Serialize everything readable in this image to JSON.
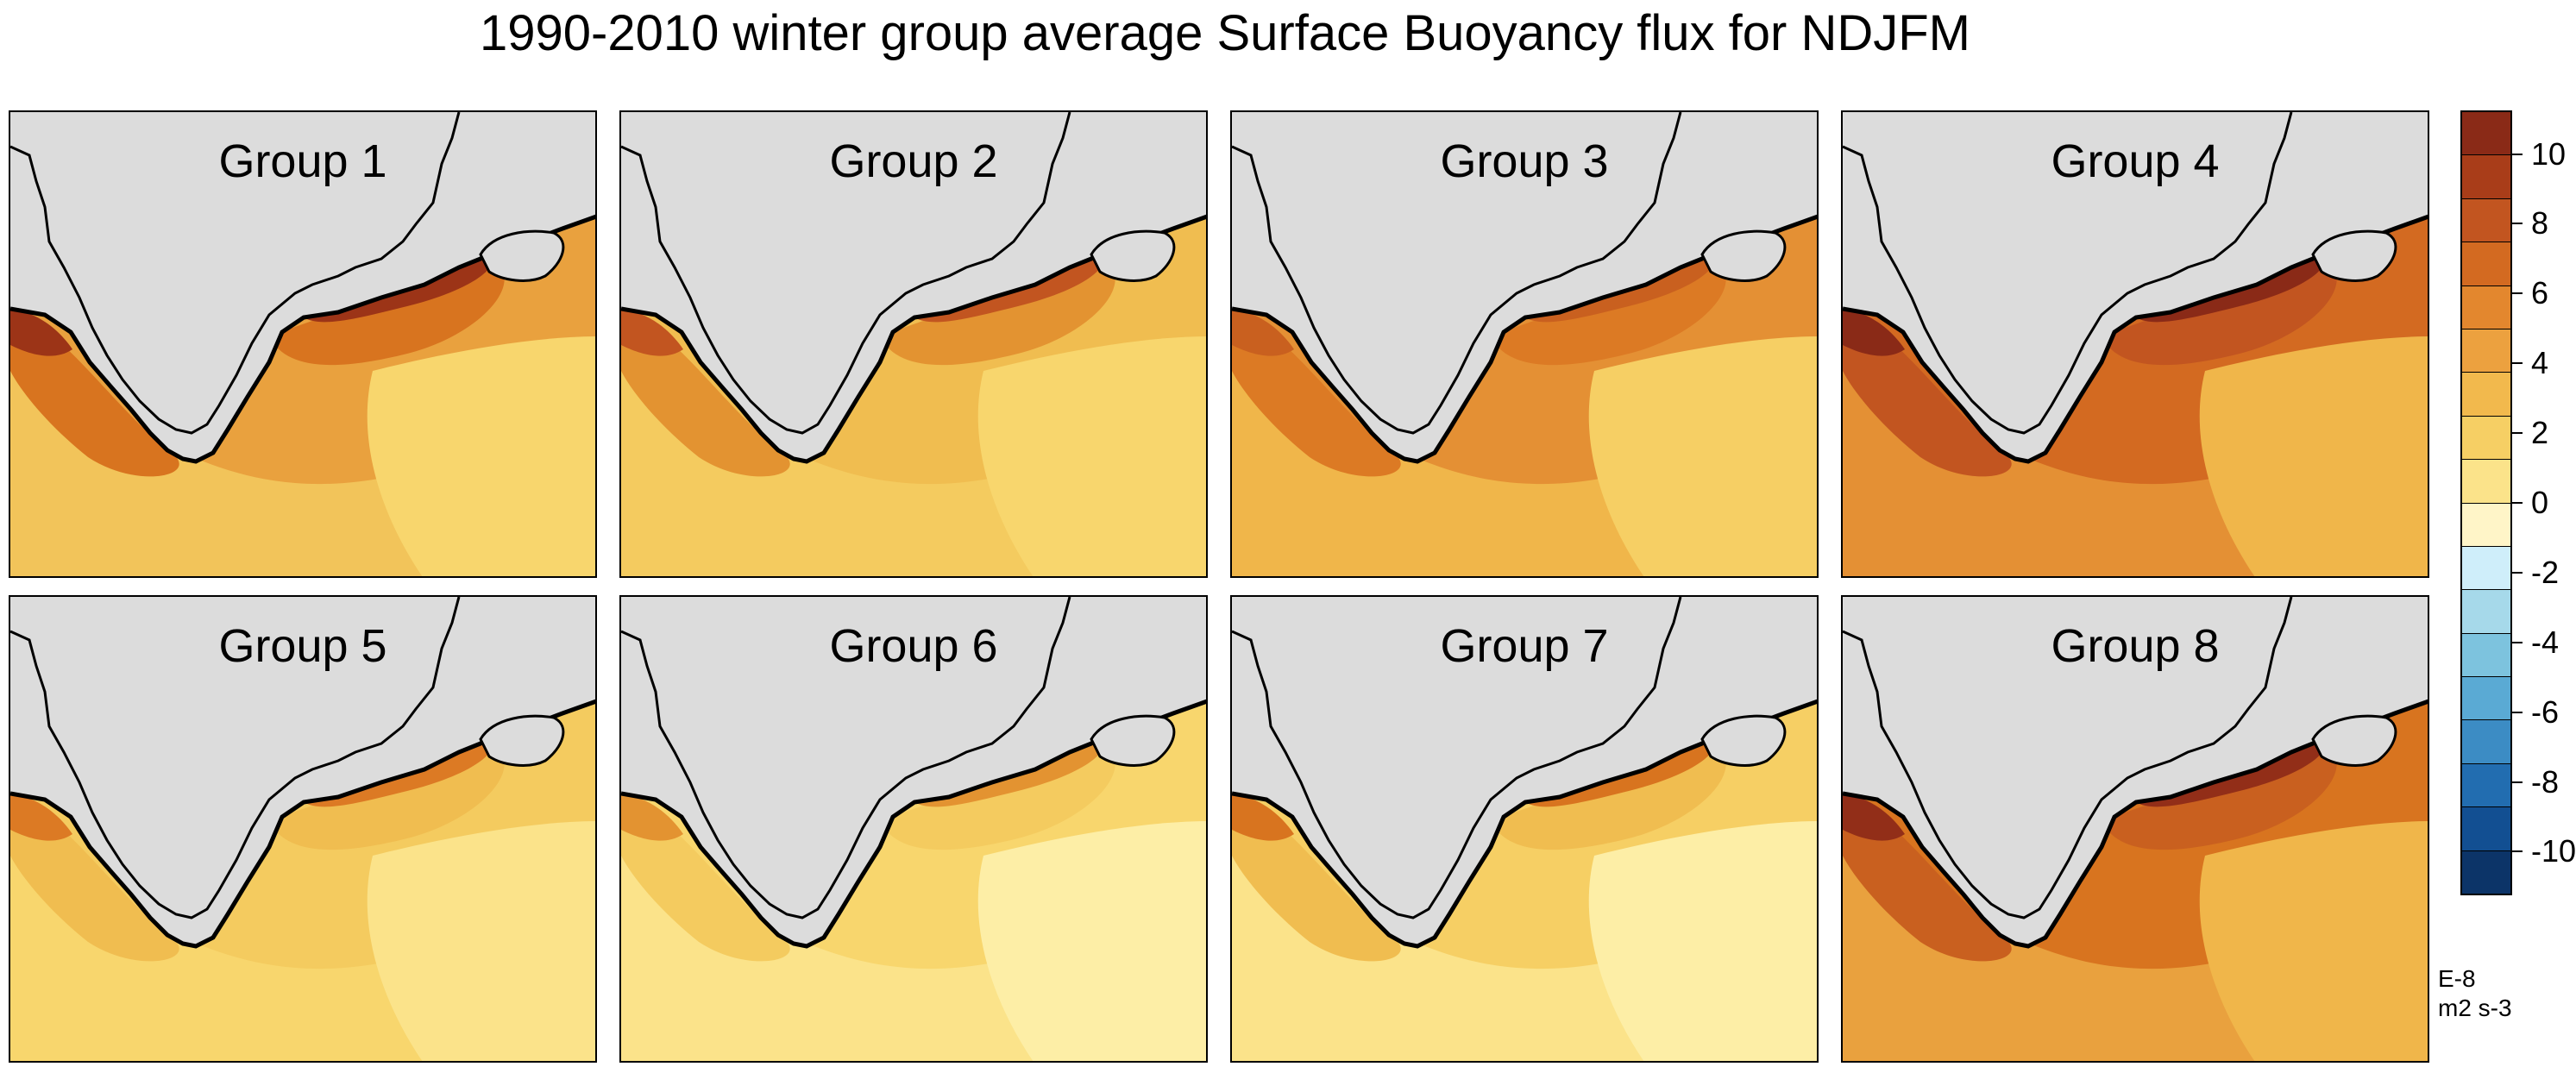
{
  "title": "1990-2010 winter group average Surface Buoyancy flux for NDJFM",
  "panels": [
    {
      "label": "Group 1",
      "palette": [
        "#e9a13e",
        "#d8741f",
        "#f2c45a",
        "#f8d66d",
        "#9c3417"
      ]
    },
    {
      "label": "Group 2",
      "palette": [
        "#f0bd50",
        "#e39331",
        "#f4cb5f",
        "#f8d66d",
        "#c25520"
      ]
    },
    {
      "label": "Group 3",
      "palette": [
        "#e49034",
        "#dc7a24",
        "#f0b64a",
        "#f6cf64",
        "#c9601f"
      ]
    },
    {
      "label": "Group 4",
      "palette": [
        "#d36a21",
        "#c25520",
        "#e49034",
        "#f0b64a",
        "#8a2a17"
      ]
    },
    {
      "label": "Group 5",
      "palette": [
        "#f4cb5f",
        "#f0bd50",
        "#f8d66d",
        "#fbe38a",
        "#dc7a24"
      ]
    },
    {
      "label": "Group 6",
      "palette": [
        "#f8d66d",
        "#f4cb5f",
        "#fbe38a",
        "#fdeea6",
        "#e39331"
      ]
    },
    {
      "label": "Group 7",
      "palette": [
        "#f6cf64",
        "#f0bd50",
        "#fbe38a",
        "#fdeea6",
        "#d8741f"
      ]
    },
    {
      "label": "Group 8",
      "palette": [
        "#d8741f",
        "#c9601f",
        "#e9a13e",
        "#f0b64a",
        "#922e18"
      ]
    }
  ],
  "land_color": "#dcdcdc",
  "colorbar": {
    "colors": [
      "#8a2a17",
      "#a93d19",
      "#c25520",
      "#d36a21",
      "#e3872e",
      "#eca13f",
      "#f2b94d",
      "#f6cf64",
      "#fbe38a",
      "#fff5c8",
      "#cfeefa",
      "#a6d9ea",
      "#7dc3de",
      "#5aaad4",
      "#3c8cc4",
      "#226db0",
      "#124f92",
      "#0c3468"
    ],
    "ticks": [
      "10",
      "8",
      "6",
      "4",
      "2",
      "0",
      "-2",
      "-4",
      "-6",
      "-8",
      "-10"
    ]
  },
  "units": {
    "line1": "E-8",
    "line2": "m2 s-3"
  }
}
